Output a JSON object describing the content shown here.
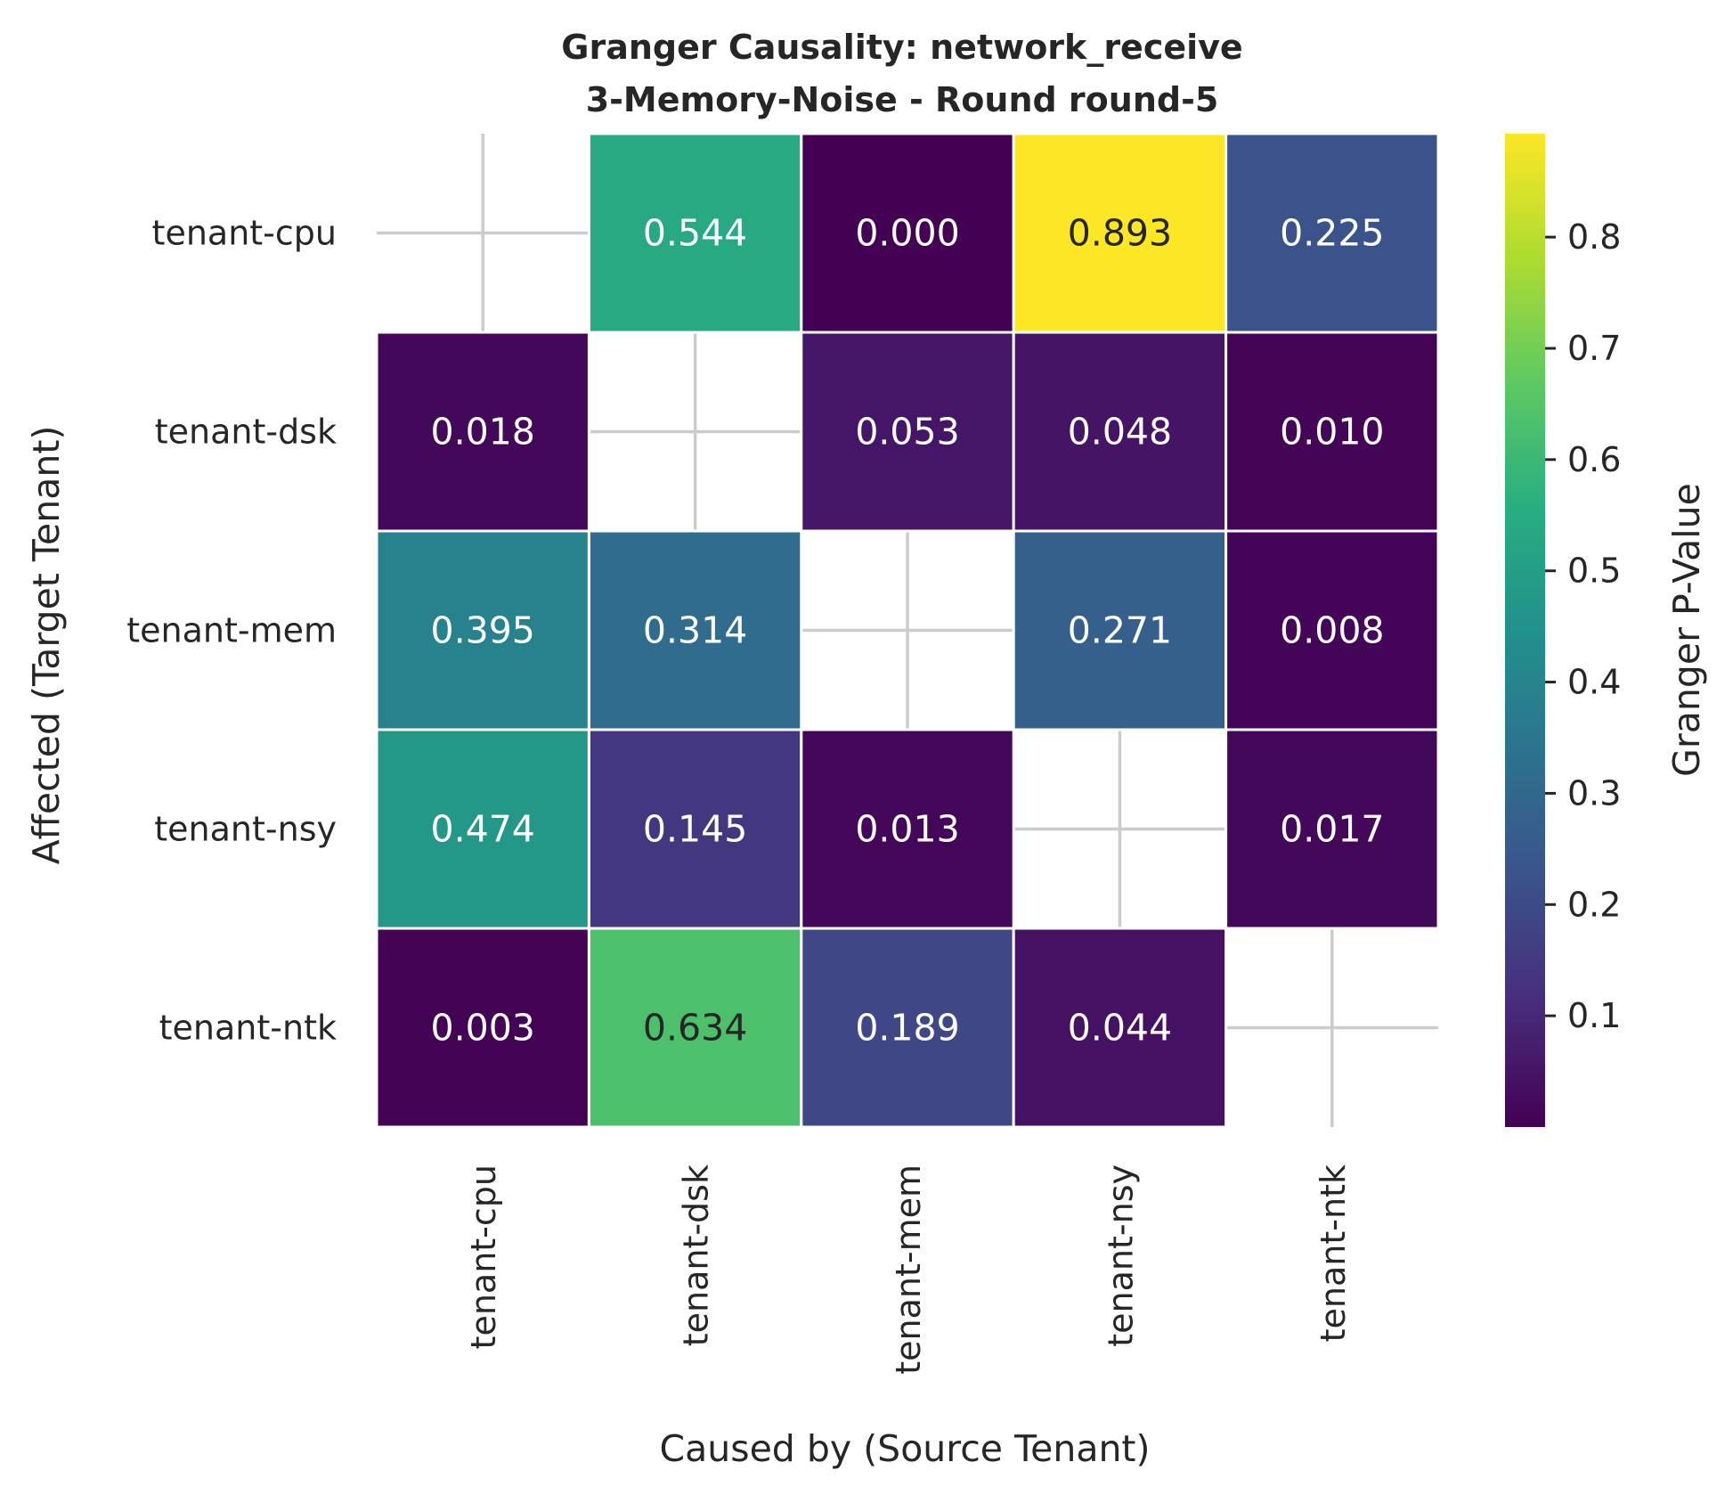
{
  "chart_data": {
    "type": "heatmap",
    "title_line1": "Granger Causality: network_receive",
    "title_line2": "3-Memory-Noise - Round round-5",
    "xlabel": "Caused by (Source Tenant)",
    "ylabel": "Affected (Target Tenant)",
    "x_categories": [
      "tenant-cpu",
      "tenant-dsk",
      "tenant-mem",
      "tenant-nsy",
      "tenant-ntk"
    ],
    "y_categories": [
      "tenant-cpu",
      "tenant-dsk",
      "tenant-mem",
      "tenant-nsy",
      "tenant-ntk"
    ],
    "values": [
      [
        null,
        0.544,
        0.0,
        0.893,
        0.225
      ],
      [
        0.018,
        null,
        0.053,
        0.048,
        0.01
      ],
      [
        0.395,
        0.314,
        null,
        0.271,
        0.008
      ],
      [
        0.474,
        0.145,
        0.013,
        null,
        0.017
      ],
      [
        0.003,
        0.634,
        0.189,
        0.044,
        null
      ]
    ],
    "labels": [
      [
        "",
        "0.544",
        "0.000",
        "0.893",
        "0.225"
      ],
      [
        "0.018",
        "",
        "0.053",
        "0.048",
        "0.010"
      ],
      [
        "0.395",
        "0.314",
        "",
        "0.271",
        "0.008"
      ],
      [
        "0.474",
        "0.145",
        "0.013",
        "",
        "0.017"
      ],
      [
        "0.003",
        "0.634",
        "0.189",
        "0.044",
        ""
      ]
    ],
    "colormap": "viridis",
    "vmin": 0.0,
    "vmax": 0.893,
    "colorbar": {
      "label": "Granger P-Value",
      "ticks": [
        0.1,
        0.2,
        0.3,
        0.4,
        0.5,
        0.6,
        0.7,
        0.8
      ],
      "tick_labels": [
        "0.1",
        "0.2",
        "0.3",
        "0.4",
        "0.5",
        "0.6",
        "0.7",
        "0.8"
      ]
    },
    "grid": true
  }
}
